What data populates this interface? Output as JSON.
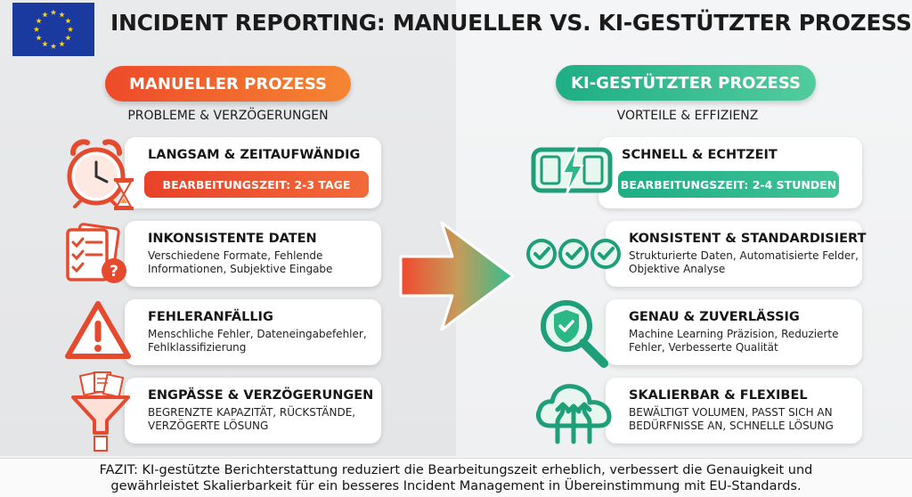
{
  "title": "INCIDENT REPORTING: MANUELLER VS. KI-GESTÜTZTER PROZESS",
  "colors": {
    "manual_accent": "#ee4a2a",
    "ai_accent": "#1fae85",
    "eu_blue": "#1a3aa0",
    "eu_star": "#f7d117"
  },
  "manual": {
    "heading": "MANUELLER PROZESS",
    "subheading": "PROBLEME & VERZÖGERUNGEN",
    "items": [
      {
        "icon": "alarm-clock-hourglass-icon",
        "title": "LANGSAM & ZEITAUFWÄNDIG",
        "badge": "BEARBEITUNGSZEIT: 2-3 TAGE"
      },
      {
        "icon": "clipboard-question-icon",
        "title": "INKONSISTENTE DATEN",
        "desc": "Verschiedene Formate, Fehlende Informationen, Subjektive Eingabe"
      },
      {
        "icon": "warning-triangle-icon",
        "title": "FEHLERANFÄLLIG",
        "desc": "Menschliche Fehler, Dateneingabefehler, Fehlklassifizierung"
      },
      {
        "icon": "funnel-documents-icon",
        "title": "ENGPÄSSE & VERZÖGERUNGEN",
        "desc": "BEGRENZTE KAPAZITÄT, RÜCKSTÄNDE, VERZÖGERTE LÖSUNG"
      }
    ]
  },
  "ai": {
    "heading": "KI-GESTÜTZTER PROZESS",
    "subheading": "VORTEILE & EFFIZIENZ",
    "items": [
      {
        "icon": "digital-clock-lightning-icon",
        "title": "SCHNELL & ECHTZEIT",
        "badge": "BEARBEITUNGSZEIT: 2-4 STUNDEN"
      },
      {
        "icon": "checkmarks-icon",
        "title": "KONSISTENT & STANDARDISIERT",
        "desc": "Strukturierte Daten, Automatisierte Felder, Objektive Analyse"
      },
      {
        "icon": "magnifier-shield-icon",
        "title": "GENAU & ZUVERLÄSSIG",
        "desc": "Machine Learning Präzision, Reduzierte Fehler, Verbesserte Qualität"
      },
      {
        "icon": "cloud-scale-icon",
        "title": "SKALIERBAR & FLEXIBEL",
        "desc": "BEWÄLTIGT VOLUMEN, PASST SICH AN BEDÜRFNISSE AN, SCHNELLE LÖSUNG"
      }
    ]
  },
  "footer": {
    "line1": "FAZIT: KI-gestützte Berichterstattung reduziert die Bearbeitungszeit erheblich, verbessert die Genauigkeit und",
    "line2": "gewährleistet Skalierbarkeit für ein besseres Incident Management in Übereinstimmung mit EU-Standards."
  }
}
